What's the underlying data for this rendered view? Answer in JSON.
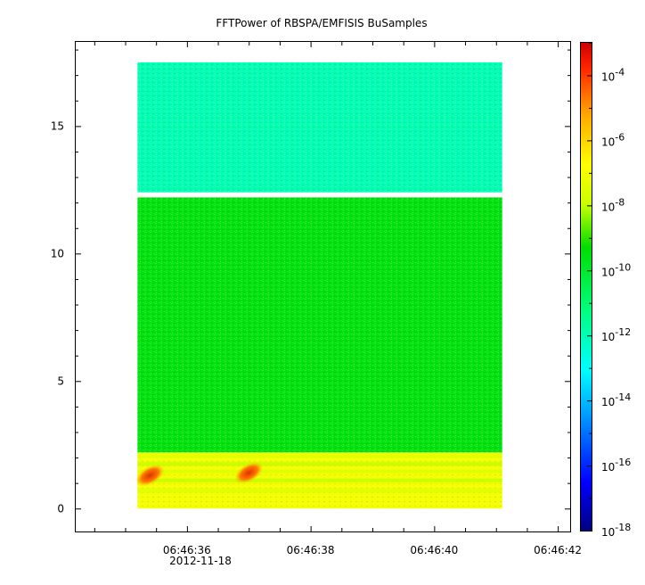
{
  "chart_data": {
    "type": "heatmap",
    "title": "FFTPower of RBSPA/EMFISIS  BuSamples",
    "xlabel": "",
    "ylabel": "",
    "x_axis": {
      "type": "time",
      "date_label": "2012-11-18",
      "range": [
        "06:46:34.2",
        "06:46:42.2"
      ],
      "minor_tick_interval_s": 0.5,
      "ticks": [
        {
          "value": "06:46:36",
          "label": "06:46:36"
        },
        {
          "value": "06:46:38",
          "label": "06:46:38"
        },
        {
          "value": "06:46:40",
          "label": "06:46:40"
        },
        {
          "value": "06:46:42",
          "label": "06:46:42"
        }
      ]
    },
    "y_axis": {
      "range": [
        -0.9,
        18.3
      ],
      "ticks": [
        0,
        5,
        10,
        15
      ]
    },
    "data_extent": {
      "x": [
        "06:46:35.2",
        "06:46:41.1"
      ],
      "y": [
        0,
        17.5
      ]
    },
    "colorbar": {
      "scale": "log",
      "range": [
        1e-18,
        0.001
      ],
      "colormap": "rainbow",
      "tick_exponents": [
        -18,
        -16,
        -14,
        -12,
        -10,
        -8,
        -6,
        -4
      ],
      "tick_base": "10"
    },
    "regions": [
      {
        "y": [
          12.4,
          17.5
        ],
        "level": 1e-12,
        "description": "upper band"
      },
      {
        "y": [
          2.2,
          12.2
        ],
        "level": 3e-10,
        "description": "middle band"
      },
      {
        "y": [
          0,
          2.2
        ],
        "level": 1e-07,
        "description": "low-frequency band"
      }
    ],
    "low_bands": [
      {
        "y": 2.05,
        "level": 3e-08
      },
      {
        "y": 1.75,
        "level": 1e-08
      },
      {
        "y": 1.45,
        "level": 3e-08
      },
      {
        "y": 1.1,
        "level": 1e-08
      },
      {
        "y": 0.7,
        "level": 3e-08
      }
    ],
    "bursts": [
      {
        "time": "06:46:35.2",
        "y": 1.3,
        "level": 1e-06
      },
      {
        "time": "06:46:36.8",
        "y": 1.4,
        "level": 1e-06
      }
    ]
  },
  "icons": {
    "colorbar": "rainbow-colorbar"
  }
}
